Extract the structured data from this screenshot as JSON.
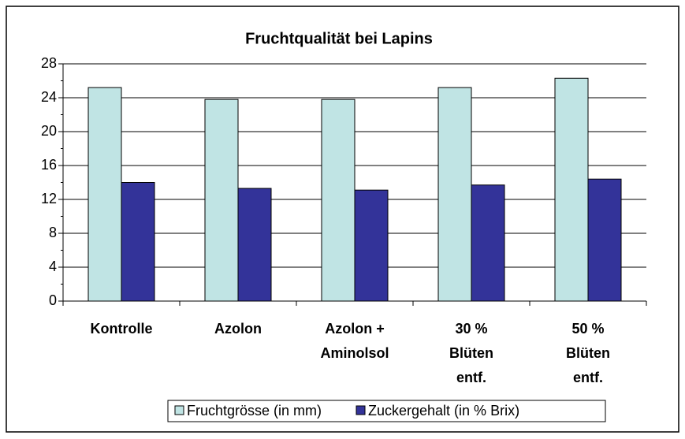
{
  "chart_data": {
    "type": "bar",
    "title": "Fruchtqualität bei Lapins",
    "categories": [
      [
        "Kontrolle"
      ],
      [
        "Azolon"
      ],
      [
        "Azolon +",
        "Aminolsol"
      ],
      [
        "30 %",
        "Blüten",
        "entf."
      ],
      [
        "50 %",
        "Blüten",
        "entf."
      ]
    ],
    "series": [
      {
        "name": "Fruchtgrösse (in mm)",
        "color": "#c0e4e4",
        "values": [
          25.2,
          23.8,
          23.8,
          25.2,
          26.3
        ]
      },
      {
        "name": "Zuckergehalt (in % Brix)",
        "color": "#333399",
        "values": [
          14.0,
          13.3,
          13.1,
          13.7,
          14.4
        ]
      }
    ],
    "ylim": [
      0,
      28
    ],
    "yticks": [
      0,
      4,
      8,
      12,
      16,
      20,
      24,
      28
    ],
    "grid": true,
    "legend": "bottom"
  }
}
